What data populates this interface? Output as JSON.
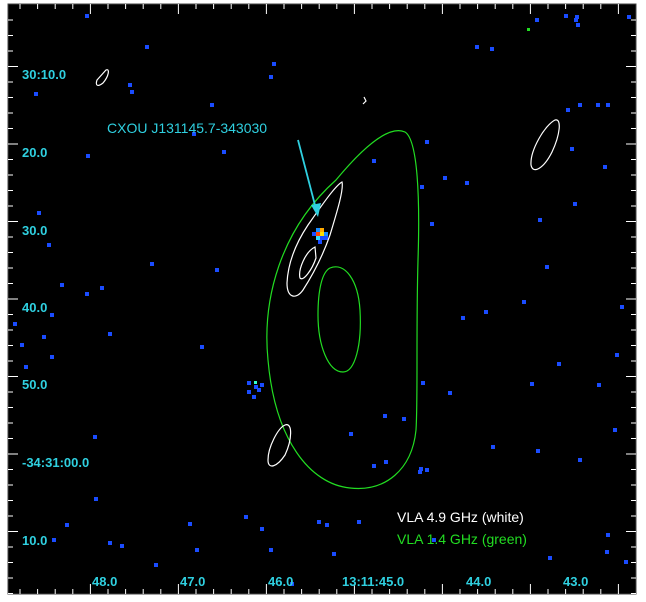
{
  "image": {
    "source_label": "CXOU J131145.7-343030",
    "y_ticks": [
      "30:10.0",
      "20.0",
      "30.0",
      "40.0",
      "50.0",
      "-34:31:00.0",
      "10.0"
    ],
    "x_ticks": [
      "48.0",
      "47.0",
      "46.0",
      "13:11:45.0",
      "44.0",
      "43.0"
    ],
    "legend": [
      {
        "label": "VLA 4.9 GHz (white)",
        "color": "#ffffff"
      },
      {
        "label": "VLA 1.4 GHz (green)",
        "color": "#22dd22"
      }
    ],
    "colors": {
      "background": "#000000",
      "axis_label": "#2fd0e0",
      "arrow": "#2fd0e0",
      "contour_white": "#ffffff",
      "contour_green": "#22dd22",
      "noise_pixel": "#1a4cff"
    }
  }
}
